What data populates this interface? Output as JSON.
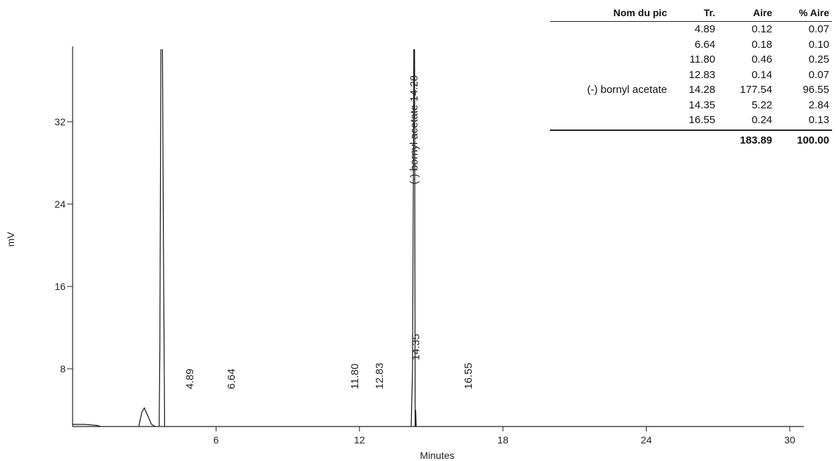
{
  "chart_data": {
    "type": "line",
    "xlabel": "Minutes",
    "ylabel": "mV",
    "xlim": [
      0,
      30
    ],
    "ylim": [
      0,
      40
    ],
    "x_ticks": [
      6,
      12,
      18,
      24,
      30
    ],
    "y_ticks": [
      8,
      16,
      24,
      32
    ],
    "series": [
      {
        "x": [
          0,
          0.5,
          1.0,
          1.5,
          2.0,
          2.5,
          2.75,
          2.9,
          3.0,
          3.15,
          3.3,
          3.45,
          3.55,
          3.62,
          3.65,
          3.7,
          3.75,
          3.8,
          3.85,
          4.0,
          4.5,
          5.0,
          8.0,
          11.7,
          11.8,
          11.9,
          14.0,
          14.15,
          14.22,
          14.28,
          14.3,
          14.33,
          14.35,
          14.38,
          14.42,
          14.6,
          16.5,
          16.55,
          16.6,
          20.0,
          25.0,
          28.5,
          30.0
        ],
        "y": [
          2.6,
          2.6,
          2.5,
          2.2,
          2.1,
          2.1,
          2.2,
          3.8,
          4.2,
          3.4,
          2.6,
          2.4,
          2.2,
          2.3,
          10.0,
          43.0,
          43.0,
          20.0,
          2.0,
          1.4,
          1.4,
          1.4,
          1.35,
          1.35,
          1.55,
          1.35,
          1.3,
          1.3,
          8.0,
          43.0,
          43.0,
          2.0,
          4.0,
          1.6,
          1.3,
          1.25,
          1.2,
          1.35,
          1.2,
          1.15,
          1.1,
          1.05,
          1.0
        ]
      }
    ],
    "peak_annotations": [
      {
        "x": 4.89,
        "label": "4.89"
      },
      {
        "x": 6.64,
        "label": "6.64"
      },
      {
        "x": 11.8,
        "label": "11.80"
      },
      {
        "x": 12.83,
        "label": "12.83"
      },
      {
        "x": 14.28,
        "label": "(-) bornyl acetate 14.28"
      },
      {
        "x": 14.35,
        "label": "14.35"
      },
      {
        "x": 16.55,
        "label": "16.55"
      }
    ]
  },
  "table": {
    "headers": {
      "name": "Nom du pic",
      "rt": "Tr.",
      "area": "Aire",
      "area_pct": "% Aire"
    },
    "rows": [
      {
        "name": "",
        "rt": "4.89",
        "area": "0.12",
        "area_pct": "0.07"
      },
      {
        "name": "",
        "rt": "6.64",
        "area": "0.18",
        "area_pct": "0.10"
      },
      {
        "name": "",
        "rt": "11.80",
        "area": "0.46",
        "area_pct": "0.25"
      },
      {
        "name": "",
        "rt": "12.83",
        "area": "0.14",
        "area_pct": "0.07"
      },
      {
        "name": "(-) bornyl acetate",
        "rt": "14.28",
        "area": "177.54",
        "area_pct": "96.55"
      },
      {
        "name": "",
        "rt": "14.35",
        "area": "5.22",
        "area_pct": "2.84"
      },
      {
        "name": "",
        "rt": "16.55",
        "area": "0.24",
        "area_pct": "0.13"
      }
    ],
    "totals": {
      "area": "183.89",
      "area_pct": "100.00"
    }
  }
}
